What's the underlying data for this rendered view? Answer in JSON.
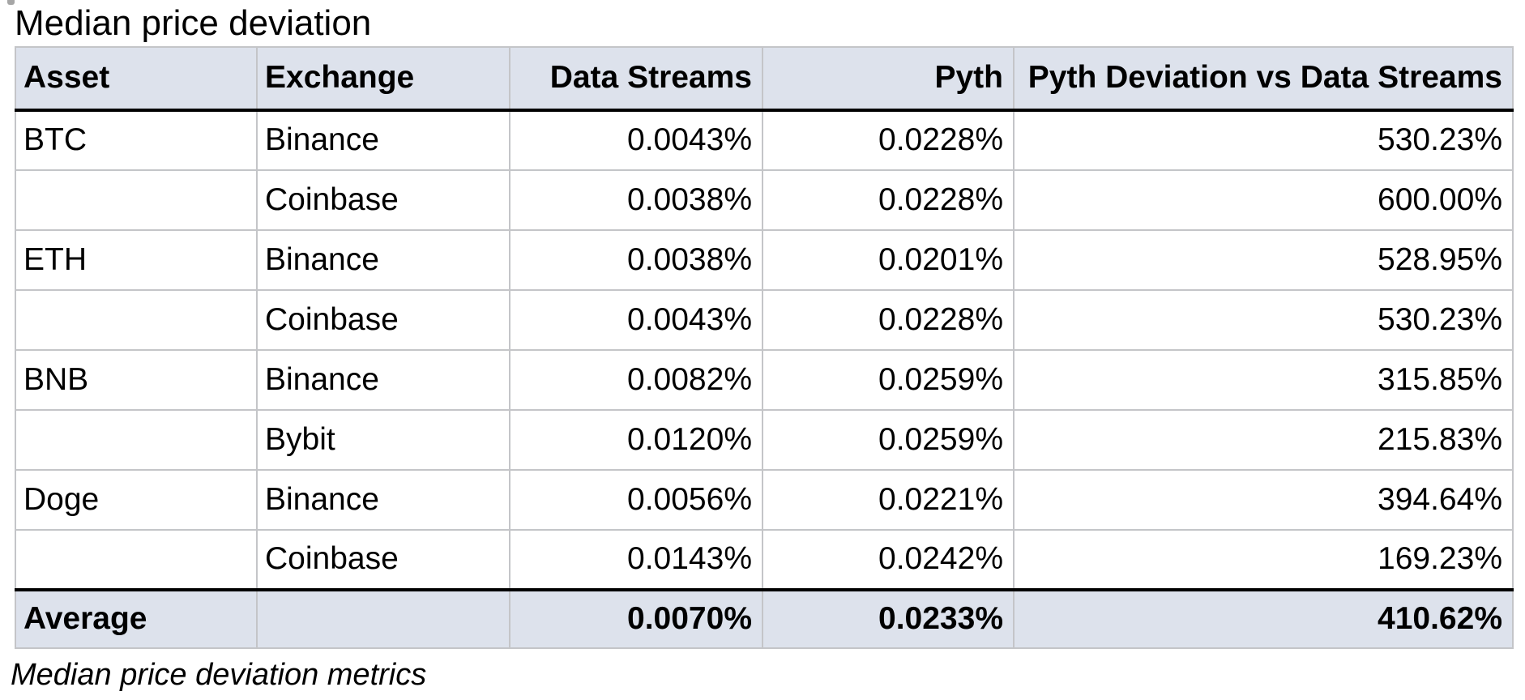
{
  "title": "Median price deviation",
  "caption": "Median price deviation metrics",
  "colors": {
    "header_row_bg": "#dde2ec",
    "summary_row_bg": "#dde2ec",
    "grid_border": "#c4c5c8",
    "heavy_rule": "#000000",
    "text": "#000000",
    "page_bg": "#ffffff"
  },
  "table": {
    "columns": [
      "Asset",
      "Exchange",
      "Data Streams",
      "Pyth",
      "Pyth Deviation vs Data Streams"
    ],
    "rows": [
      {
        "asset": "BTC",
        "exchange": "Binance",
        "data_streams": "0.0043%",
        "pyth": "0.0228%",
        "deviation": "530.23%"
      },
      {
        "asset": "",
        "exchange": "Coinbase",
        "data_streams": "0.0038%",
        "pyth": "0.0228%",
        "deviation": "600.00%"
      },
      {
        "asset": "ETH",
        "exchange": "Binance",
        "data_streams": "0.0038%",
        "pyth": "0.0201%",
        "deviation": "528.95%"
      },
      {
        "asset": "",
        "exchange": "Coinbase",
        "data_streams": "0.0043%",
        "pyth": "0.0228%",
        "deviation": "530.23%"
      },
      {
        "asset": "BNB",
        "exchange": "Binance",
        "data_streams": "0.0082%",
        "pyth": "0.0259%",
        "deviation": "315.85%"
      },
      {
        "asset": "",
        "exchange": "Bybit",
        "data_streams": "0.0120%",
        "pyth": "0.0259%",
        "deviation": "215.83%"
      },
      {
        "asset": "Doge",
        "exchange": "Binance",
        "data_streams": "0.0056%",
        "pyth": "0.0221%",
        "deviation": "394.64%"
      },
      {
        "asset": "",
        "exchange": "Coinbase",
        "data_streams": "0.0143%",
        "pyth": "0.0242%",
        "deviation": "169.23%"
      }
    ],
    "summary": {
      "label": "Average",
      "exchange": "",
      "data_streams": "0.0070%",
      "pyth": "0.0233%",
      "deviation": "410.62%"
    }
  }
}
